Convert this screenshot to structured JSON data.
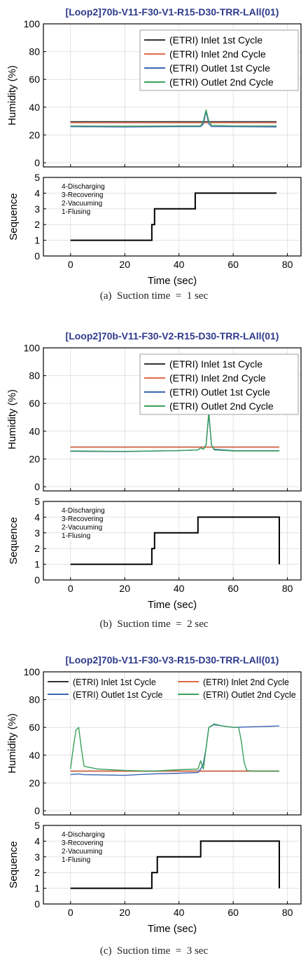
{
  "colors": {
    "inlet1": "#333333",
    "inlet2": "#e06a4a",
    "outlet1": "#3a64b5",
    "outlet2": "#3aa05a",
    "sequence": "#000000",
    "title": "#2e3a8c"
  },
  "seq_labels": [
    "4-Discharging",
    "3-Recovering",
    "2-Vacuuming",
    "1-Flusing"
  ],
  "chart_data": [
    {
      "type": "line",
      "title": "[Loop2]70b-V11-F30-V1-R15-D30-TRR-LAll(01)",
      "caption": "(a)  Suction time  =  1 sec",
      "xlabel": "Time (sec)",
      "ylabel": "Humidity (%)",
      "seq_ylabel": "Sequence",
      "xlim": [
        -10,
        85
      ],
      "ylim": [
        -3,
        100
      ],
      "xticks": [
        0,
        20,
        40,
        60,
        80
      ],
      "yticks": [
        0,
        20,
        40,
        60,
        80,
        100
      ],
      "seq_ylim": [
        0,
        5
      ],
      "seq_yticks": [
        0,
        1,
        2,
        3,
        4
      ],
      "top_tick": "5",
      "legend_placement": "top-right",
      "legend_layout": "column",
      "series": [
        {
          "name": "(ETRI) Inlet 1st Cycle",
          "x": [
            0,
            76
          ],
          "values": [
            29.5,
            29.5
          ]
        },
        {
          "name": "(ETRI) Inlet 2nd Cycle",
          "x": [
            0,
            76
          ],
          "values": [
            28.8,
            28.8
          ]
        },
        {
          "name": "(ETRI) Outlet 1st Cycle",
          "x": [
            0,
            20,
            40,
            48,
            49,
            50,
            51,
            52,
            60,
            76
          ],
          "values": [
            26,
            25.8,
            26,
            26,
            28,
            37,
            28,
            26,
            26,
            25.8
          ]
        },
        {
          "name": "(ETRI) Outlet 2nd Cycle",
          "x": [
            0,
            20,
            40,
            48,
            49,
            50,
            51,
            52,
            60,
            76
          ],
          "values": [
            26.5,
            26.3,
            26.5,
            26.5,
            30,
            38,
            30,
            27,
            26.5,
            26.5
          ]
        }
      ],
      "sequence": {
        "x": [
          0,
          30,
          30,
          31,
          31,
          46,
          46,
          76
        ],
        "values": [
          1,
          1,
          2,
          2,
          3,
          3,
          4,
          4
        ]
      }
    },
    {
      "type": "line",
      "title": "[Loop2]70b-V11-F30-V2-R15-D30-TRR-LAll(01)",
      "caption": "(b)  Suction time  =  2 sec",
      "xlabel": "Time (sec)",
      "ylabel": "Humidity (%)",
      "seq_ylabel": "Sequence",
      "xlim": [
        -10,
        85
      ],
      "ylim": [
        -3,
        100
      ],
      "xticks": [
        0,
        20,
        40,
        60,
        80
      ],
      "yticks": [
        0,
        20,
        40,
        60,
        80,
        100
      ],
      "seq_ylim": [
        0,
        5
      ],
      "seq_yticks": [
        0,
        1,
        2,
        3,
        4
      ],
      "top_tick": "5",
      "legend_placement": "top-right",
      "legend_layout": "column",
      "series": [
        {
          "name": "(ETRI) Inlet 1st Cycle",
          "x": [
            0,
            77
          ],
          "values": [
            28.5,
            28.5
          ]
        },
        {
          "name": "(ETRI) Inlet 2nd Cycle",
          "x": [
            0,
            77
          ],
          "values": [
            28.5,
            28.5
          ]
        },
        {
          "name": "(ETRI) Outlet 1st Cycle",
          "x": [
            0,
            20,
            40,
            47,
            48,
            49,
            50,
            51,
            52,
            53,
            60,
            77
          ],
          "values": [
            25.5,
            25.3,
            26,
            26.5,
            28,
            27,
            30,
            52,
            30,
            27,
            26,
            26
          ]
        },
        {
          "name": "(ETRI) Outlet 2nd Cycle",
          "x": [
            0,
            20,
            40,
            47,
            48,
            49,
            50,
            51,
            52,
            53,
            60,
            77
          ],
          "values": [
            25.8,
            25.5,
            26,
            26.5,
            28,
            27,
            30,
            54,
            30,
            26.5,
            25.8,
            25.8
          ]
        }
      ],
      "sequence": {
        "x": [
          0,
          30,
          30,
          31,
          31,
          47,
          47,
          77,
          77
        ],
        "values": [
          1,
          1,
          2,
          2,
          3,
          3,
          4,
          4,
          1
        ]
      }
    },
    {
      "type": "line",
      "title": "[Loop2]70b-V11-F30-V3-R15-D30-TRR-LAll(01)",
      "caption": "(c)  Suction time  =  3 sec",
      "xlabel": "Time (sec)",
      "ylabel": "Humidity (%)",
      "seq_ylabel": "Sequence",
      "xlim": [
        -10,
        85
      ],
      "ylim": [
        -3,
        100
      ],
      "xticks": [
        0,
        20,
        40,
        60,
        80
      ],
      "yticks": [
        0,
        20,
        40,
        60,
        80,
        100
      ],
      "seq_ylim": [
        0,
        5
      ],
      "seq_yticks": [
        0,
        1,
        2,
        3,
        4
      ],
      "top_tick": "5",
      "legend_placement": "top",
      "legend_layout": "grid",
      "series": [
        {
          "name": "(ETRI) Inlet 1st Cycle",
          "x": [
            0,
            77
          ],
          "values": [
            28.5,
            28.5
          ]
        },
        {
          "name": "(ETRI) Inlet 2nd Cycle",
          "x": [
            0,
            77
          ],
          "values": [
            28.5,
            28.5
          ]
        },
        {
          "name": "(ETRI) Outlet 1st Cycle",
          "x": [
            0,
            3,
            5,
            20,
            30,
            40,
            47,
            48,
            49,
            50,
            51,
            53,
            56,
            60,
            77
          ],
          "values": [
            26,
            26.5,
            26,
            25.5,
            26.5,
            27,
            27.5,
            30,
            34,
            45,
            60,
            62,
            61,
            60,
            61
          ]
        },
        {
          "name": "(ETRI) Outlet 2nd Cycle",
          "x": [
            0,
            1,
            2,
            3,
            4,
            5,
            10,
            20,
            30,
            40,
            47,
            48,
            49,
            50,
            51,
            53,
            56,
            60,
            62,
            63,
            64,
            65,
            67,
            77
          ],
          "values": [
            30,
            45,
            58,
            60,
            45,
            32,
            30,
            29,
            28.5,
            29.5,
            30,
            36,
            30,
            45,
            60,
            62.5,
            61,
            60,
            60,
            50,
            35,
            29,
            28.5,
            28.5
          ]
        }
      ],
      "sequence": {
        "x": [
          0,
          30,
          30,
          32,
          32,
          48,
          48,
          77,
          77
        ],
        "values": [
          1,
          1,
          2,
          2,
          3,
          3,
          4,
          4,
          1
        ]
      }
    }
  ]
}
